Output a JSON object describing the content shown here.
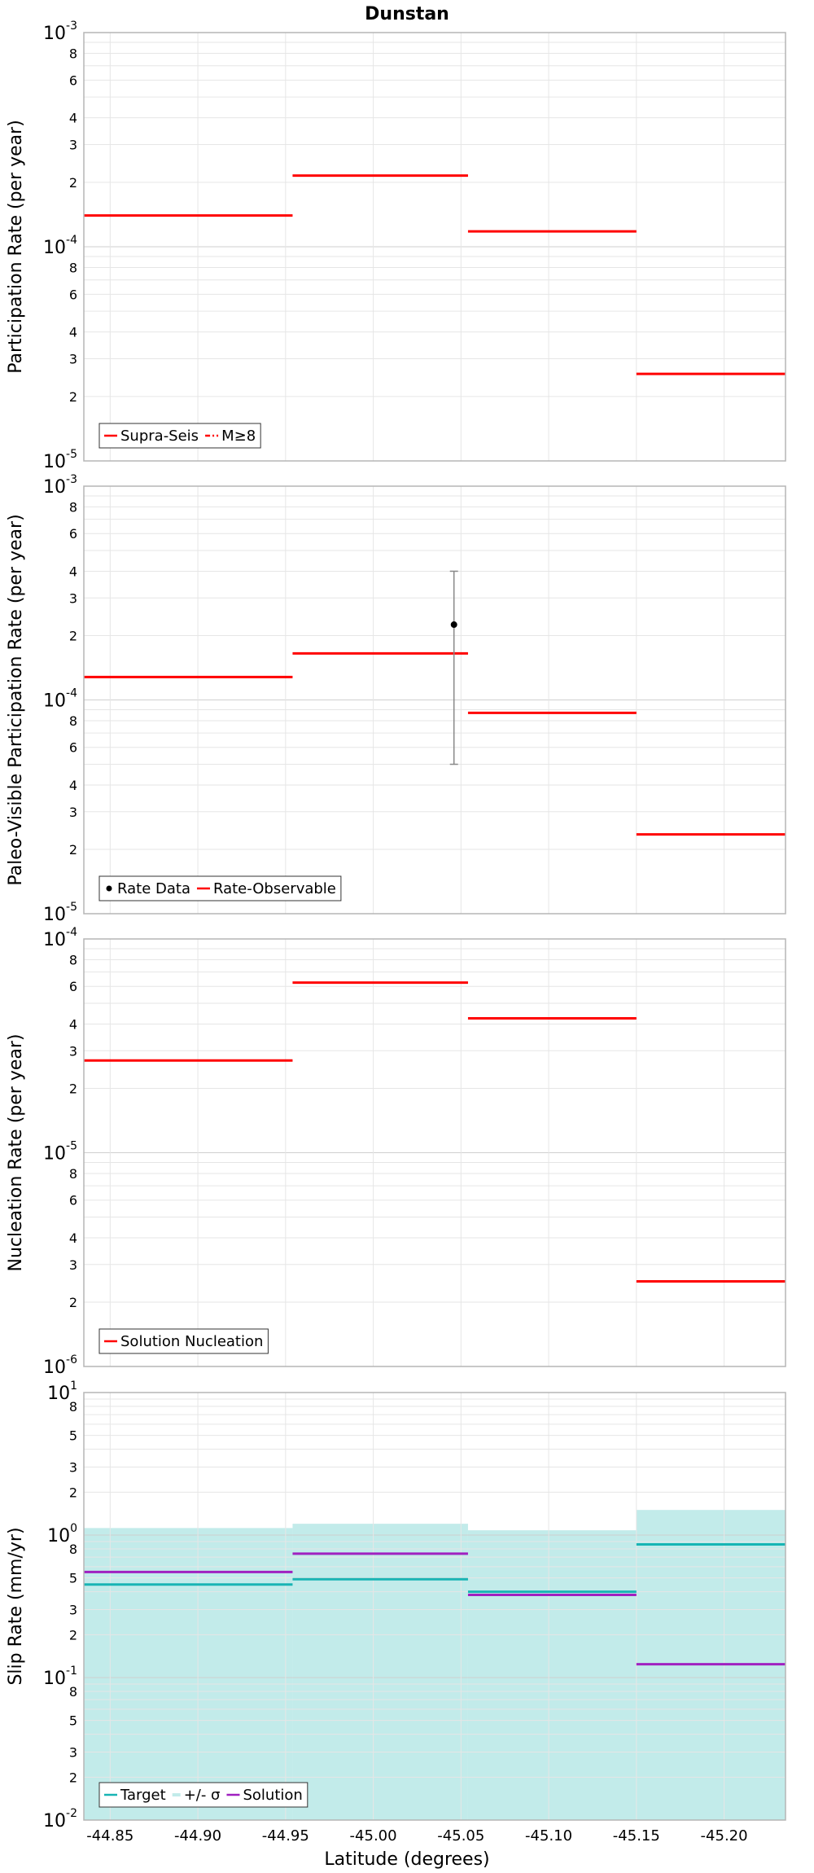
{
  "figure": {
    "title": "Dunstan",
    "xlabel": "Latitude (degrees)"
  },
  "chart_data": [
    {
      "type": "line",
      "ylabel": "Participation Rate (per year)",
      "yscale": "log",
      "ylim": [
        1e-05,
        0.001
      ],
      "xlim": [
        -44.835,
        -45.235
      ],
      "x_reversed": true,
      "grid": true,
      "legend_position": "bottom-left",
      "legend": [
        "Supra-Seis",
        "M≥8"
      ],
      "series": [
        {
          "name": "Supra-Seis",
          "color": "#ff0000",
          "style": "step",
          "segments": [
            {
              "x0": -44.835,
              "x1": -44.954,
              "y": 0.00014
            },
            {
              "x0": -44.954,
              "x1": -45.054,
              "y": 0.000215
            },
            {
              "x0": -45.054,
              "x1": -45.15,
              "y": 0.000118
            },
            {
              "x0": -45.15,
              "x1": -45.235,
              "y": 2.55e-05
            }
          ]
        },
        {
          "name": "M≥8",
          "color": "#ff0000",
          "style": "dash-dot",
          "segments": []
        }
      ]
    },
    {
      "type": "line",
      "ylabel": "Paleo-Visible Participation Rate (per year)",
      "yscale": "log",
      "ylim": [
        1e-05,
        0.001
      ],
      "xlim": [
        -44.835,
        -45.235
      ],
      "x_reversed": true,
      "grid": true,
      "legend_position": "bottom-left",
      "legend": [
        "Rate Data",
        "Rate-Observable"
      ],
      "series": [
        {
          "name": "Rate Data",
          "color": "#000000",
          "style": "point",
          "points": [
            {
              "x": -45.046,
              "y": 0.000225,
              "ylow": 5e-05,
              "yhigh": 0.0004
            }
          ]
        },
        {
          "name": "Rate-Observable",
          "color": "#ff0000",
          "style": "step",
          "segments": [
            {
              "x0": -44.835,
              "x1": -44.954,
              "y": 0.000128
            },
            {
              "x0": -44.954,
              "x1": -45.054,
              "y": 0.000165
            },
            {
              "x0": -45.054,
              "x1": -45.15,
              "y": 8.7e-05
            },
            {
              "x0": -45.15,
              "x1": -45.235,
              "y": 2.35e-05
            }
          ]
        }
      ]
    },
    {
      "type": "line",
      "ylabel": "Nucleation Rate (per year)",
      "yscale": "log",
      "ylim": [
        1e-06,
        0.0001
      ],
      "xlim": [
        -44.835,
        -45.235
      ],
      "x_reversed": true,
      "grid": true,
      "legend_position": "bottom-left",
      "legend": [
        "Solution Nucleation"
      ],
      "series": [
        {
          "name": "Solution Nucleation",
          "color": "#ff0000",
          "style": "step",
          "segments": [
            {
              "x0": -44.835,
              "x1": -44.954,
              "y": 2.7e-05
            },
            {
              "x0": -44.954,
              "x1": -45.054,
              "y": 6.25e-05
            },
            {
              "x0": -45.054,
              "x1": -45.15,
              "y": 4.25e-05
            },
            {
              "x0": -45.15,
              "x1": -45.235,
              "y": 2.5e-06
            }
          ]
        }
      ]
    },
    {
      "type": "line",
      "ylabel": "Slip Rate (mm/yr)",
      "yscale": "log",
      "ylim": [
        0.01,
        10
      ],
      "xlim": [
        -44.835,
        -45.235
      ],
      "x_reversed": true,
      "grid": true,
      "legend_position": "bottom-left",
      "legend": [
        "Target",
        "+/- σ",
        "Solution"
      ],
      "series": [
        {
          "name": "+/- σ",
          "color": "#c2ebea",
          "style": "band",
          "segments": [
            {
              "x0": -44.835,
              "x1": -44.954,
              "y0": 0.01,
              "y1": 1.12
            },
            {
              "x0": -44.954,
              "x1": -45.054,
              "y0": 0.01,
              "y1": 1.2
            },
            {
              "x0": -45.054,
              "x1": -45.15,
              "y0": 0.01,
              "y1": 1.08
            },
            {
              "x0": -45.15,
              "x1": -45.235,
              "y0": 0.01,
              "y1": 1.5
            }
          ]
        },
        {
          "name": "Target",
          "color": "#18b4b4",
          "style": "step",
          "segments": [
            {
              "x0": -44.835,
              "x1": -44.954,
              "y": 0.45
            },
            {
              "x0": -44.954,
              "x1": -45.054,
              "y": 0.49
            },
            {
              "x0": -45.054,
              "x1": -45.15,
              "y": 0.4
            },
            {
              "x0": -45.15,
              "x1": -45.235,
              "y": 0.86
            }
          ]
        },
        {
          "name": "Solution",
          "color": "#a020c0",
          "style": "step",
          "segments": [
            {
              "x0": -44.835,
              "x1": -44.954,
              "y": 0.55
            },
            {
              "x0": -44.954,
              "x1": -45.054,
              "y": 0.74
            },
            {
              "x0": -45.054,
              "x1": -45.15,
              "y": 0.38
            },
            {
              "x0": -45.15,
              "x1": -45.235,
              "y": 0.124
            }
          ]
        }
      ]
    }
  ],
  "x_ticks": [
    -44.85,
    -44.9,
    -44.95,
    -45.0,
    -45.05,
    -45.1,
    -45.15,
    -45.2
  ],
  "x_tick_labels": [
    "-44.85",
    "-44.90",
    "-44.95",
    "-45.00",
    "-45.05",
    "-45.10",
    "-45.15",
    "-45.20"
  ],
  "y_tick_labels": {
    "p1": {
      "top_base": "10",
      "top_sup": "-3",
      "mid_base": "10",
      "mid_sup": "-4",
      "bot_base": "10",
      "bot_sup": "-5"
    },
    "p2": {
      "top_base": "10",
      "top_sup": "-3",
      "mid_base": "10",
      "mid_sup": "-4",
      "bot_base": "10",
      "bot_sup": "-5"
    },
    "p3": {
      "top_base": "10",
      "top_sup": "-4",
      "mid_base": "10",
      "mid_sup": "-5",
      "bot_base": "10",
      "bot_sup": "-6"
    },
    "p4": {
      "top_base": "10",
      "top_sup": "1",
      "mid1_base": "10",
      "mid1_sup": "0",
      "mid2_base": "10",
      "mid2_sup": "-1",
      "bot_base": "10",
      "bot_sup": "-2"
    }
  },
  "minor_tick_labels": [
    "2",
    "3",
    "4",
    "6",
    "8"
  ],
  "minor_tick_labels_slip": [
    "2",
    "3",
    "5",
    "8"
  ]
}
